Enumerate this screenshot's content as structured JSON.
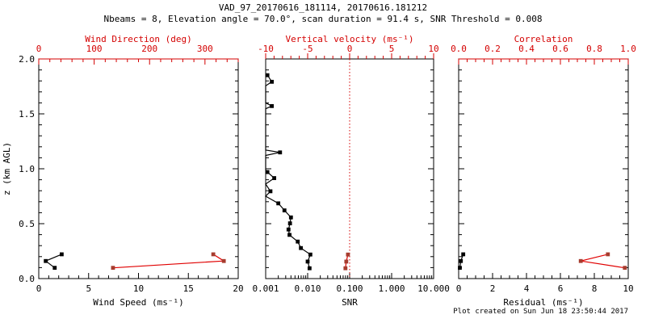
{
  "header": {
    "title": "VAD_97_20170616_181114, 20170616.181212",
    "subtitle": "Nbeams = 8, Elevation angle = 70.0°, scan duration = 91.4 s, SNR Threshold = 0.008"
  },
  "footer": {
    "created": "Plot created on Sun Jun 18 23:50:44 2017"
  },
  "colors": {
    "axis_red": "#d40000",
    "data_red_line": "#e00000",
    "data_red_marker": "#a63c2e",
    "black": "#000000",
    "background": "#ffffff"
  },
  "chart_data": [
    {
      "type": "line",
      "name": "wind",
      "y": {
        "label": "z (km AGL)",
        "range": [
          0,
          2
        ],
        "tick_values": [
          0,
          0.5,
          1,
          1.5,
          2
        ],
        "tick_labels": [
          "0.0",
          "0.5",
          "1.0",
          "1.5",
          "2.0"
        ],
        "minor_step": 0.1,
        "show_labels": true
      },
      "x_bottom": {
        "label": "Wind Speed (ms⁻¹)",
        "scale": "linear",
        "range": [
          0,
          20
        ],
        "tick_values": [
          0,
          5,
          10,
          15,
          20
        ],
        "tick_labels": [
          "0",
          "5",
          "10",
          "15",
          "20"
        ],
        "minor_step": 1
      },
      "x_top": {
        "label": "Wind Direction (deg)",
        "scale": "linear",
        "range": [
          0,
          360
        ],
        "tick_values": [
          0,
          100,
          200,
          300
        ],
        "tick_labels": [
          "0",
          "100",
          "200",
          "300"
        ],
        "minor_step": 20,
        "zero_line": false
      },
      "series": [
        {
          "name": "wind-speed",
          "axis": "bottom",
          "color": "black",
          "z": [
            0.221,
            0.16,
            0.098
          ],
          "x": [
            2.3,
            0.7,
            1.6
          ],
          "markers": [
            true,
            true,
            true
          ]
        },
        {
          "name": "wind-direction",
          "axis": "top",
          "color": "red",
          "z": [
            0.098,
            0.16,
            0.221
          ],
          "x": [
            134,
            334,
            315
          ],
          "markers": [
            true,
            true,
            true
          ]
        }
      ]
    },
    {
      "type": "line",
      "name": "snr",
      "y": {
        "label": "",
        "range": [
          0,
          2
        ],
        "tick_values": [
          0,
          0.5,
          1,
          1.5,
          2
        ],
        "tick_labels": [
          "0.0",
          "0.5",
          "1.0",
          "1.5",
          "2.0"
        ],
        "minor_step": 0.1,
        "show_labels": false
      },
      "x_bottom": {
        "label": "SNR",
        "scale": "log",
        "range": [
          0.001,
          10
        ],
        "tick_values": [
          0.001,
          0.01,
          0.1,
          1,
          10
        ],
        "tick_labels": [
          "0.001",
          "0.010",
          "0.100",
          "1.000",
          "10.000"
        ]
      },
      "x_top": {
        "label": "Vertical velocity (ms⁻¹)",
        "scale": "linear",
        "range": [
          -10,
          10
        ],
        "tick_values": [
          -10,
          -5,
          0,
          5,
          10
        ],
        "tick_labels": [
          "-10",
          "-5",
          "0",
          "5",
          "10"
        ],
        "minor_step": 1,
        "zero_line": true
      },
      "series": [
        {
          "name": "snr-profile",
          "axis": "bottom",
          "color": "black",
          "z": [
            1.852,
            1.792,
            1.755,
            1.6,
            1.571,
            1.546,
            1.17,
            1.149,
            1.121,
            0.99,
            0.97,
            0.915,
            0.861,
            0.795,
            0.75,
            0.685,
            0.621,
            0.557,
            0.503,
            0.447,
            0.398,
            0.337,
            0.278,
            0.219,
            0.155,
            0.094
          ],
          "x": [
            0.0011,
            0.0014,
            0.001,
            0.001,
            0.0014,
            0.001,
            0.001,
            0.0022,
            0.001,
            0.001,
            0.0011,
            0.0016,
            0.001,
            0.0013,
            0.001,
            0.002,
            0.0028,
            0.004,
            0.0038,
            0.0035,
            0.0037,
            0.0058,
            0.0069,
            0.0116,
            0.01,
            0.0111
          ],
          "markers": [
            true,
            true,
            false,
            false,
            true,
            false,
            false,
            true,
            false,
            false,
            true,
            true,
            false,
            true,
            false,
            true,
            true,
            true,
            true,
            true,
            true,
            true,
            true,
            true,
            true,
            true
          ]
        },
        {
          "name": "vertical-velocity",
          "axis": "top",
          "color": "red",
          "z": [
            0.219,
            0.155,
            0.094
          ],
          "x": [
            -0.2,
            -0.4,
            -0.5
          ],
          "markers": [
            true,
            true,
            true
          ]
        }
      ]
    },
    {
      "type": "line",
      "name": "residual",
      "y": {
        "label": "",
        "range": [
          0,
          2
        ],
        "tick_values": [
          0,
          0.5,
          1,
          1.5,
          2
        ],
        "tick_labels": [
          "0.0",
          "0.5",
          "1.0",
          "1.5",
          "2.0"
        ],
        "minor_step": 0.1,
        "show_labels": false
      },
      "x_bottom": {
        "label": "Residual (ms⁻¹)",
        "scale": "linear",
        "range": [
          0,
          10
        ],
        "tick_values": [
          0,
          2,
          4,
          6,
          8,
          10
        ],
        "tick_labels": [
          "0",
          "2",
          "4",
          "6",
          "8",
          "10"
        ],
        "minor_step": 0.5
      },
      "x_top": {
        "label": "Correlation",
        "scale": "linear",
        "range": [
          0,
          1
        ],
        "tick_values": [
          0,
          0.2,
          0.4,
          0.6,
          0.8,
          1
        ],
        "tick_labels": [
          "0.0",
          "0.2",
          "0.4",
          "0.6",
          "0.8",
          "1.0"
        ],
        "minor_step": 0.05,
        "zero_line": false
      },
      "series": [
        {
          "name": "residual",
          "axis": "bottom",
          "color": "black",
          "z": [
            0.221,
            0.16,
            0.098
          ],
          "x": [
            0.27,
            0.13,
            0.07
          ],
          "markers": [
            true,
            true,
            true
          ]
        },
        {
          "name": "correlation",
          "axis": "top",
          "color": "red",
          "z": [
            0.098,
            0.16,
            0.221
          ],
          "x": [
            0.98,
            0.72,
            0.88
          ],
          "markers": [
            true,
            true,
            true
          ]
        }
      ]
    }
  ]
}
